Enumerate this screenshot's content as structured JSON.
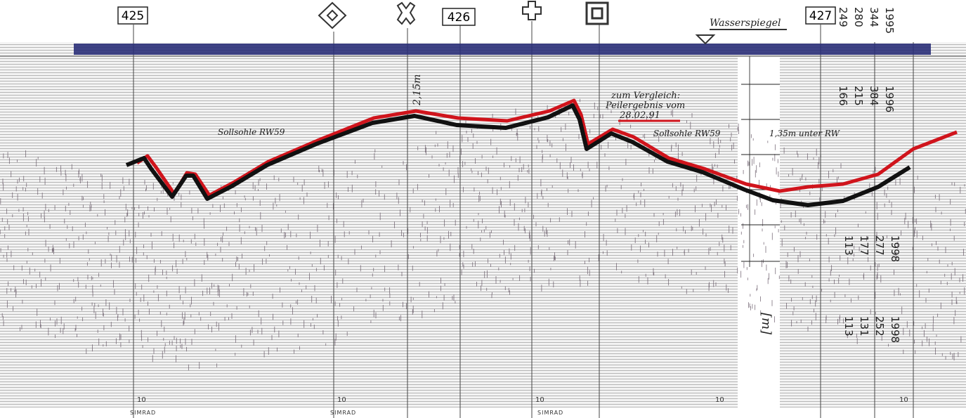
{
  "stations": [
    "425",
    "426",
    "427"
  ],
  "water_level": "Wasserspiegel",
  "design_bed_left": "Sollsohle RW59",
  "design_bed_right": "Sollsohle RW59",
  "comparison": {
    "line1": "zum Vergleich:",
    "line2": "Peilergebnis vom",
    "date": "28.02.91"
  },
  "depth_note": "1,35m unter RW",
  "depth_left": "2,15m",
  "unit": "[m]",
  "readings": [
    [
      "1995",
      "344",
      "280",
      "249"
    ],
    [
      "1996",
      "384",
      "215",
      "166"
    ],
    [
      "1998",
      "277",
      "177",
      "113"
    ],
    [
      "1998",
      "252",
      "131",
      "113"
    ]
  ],
  "scale_marks": [
    "10",
    "10",
    "10",
    "10",
    "10"
  ],
  "footer": [
    "SIMRAD",
    "SIMRAD",
    "SIMRAD"
  ]
}
